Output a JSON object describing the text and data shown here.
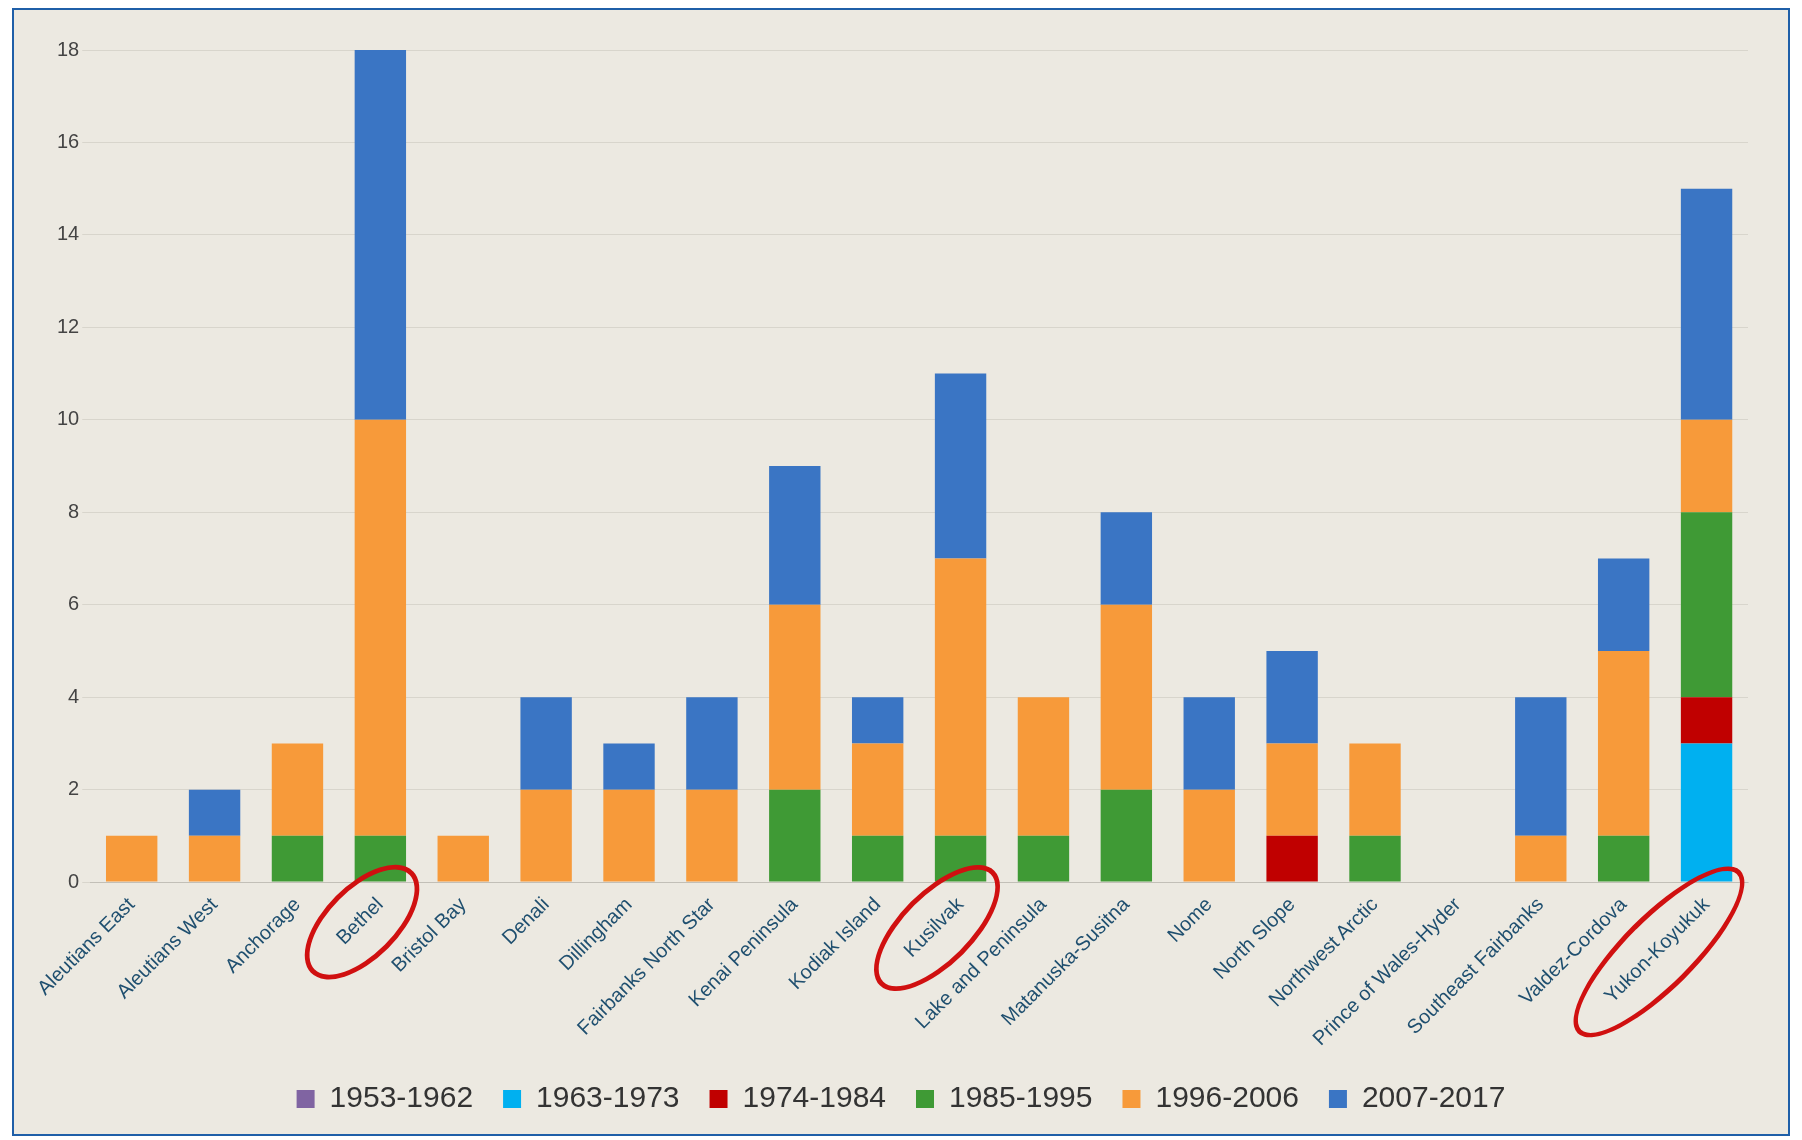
{
  "chart_data": {
    "type": "bar",
    "stacked": true,
    "categories": [
      "Aleutians East",
      "Aleutians West",
      "Anchorage",
      "Bethel",
      "Bristol Bay",
      "Denali",
      "Dillingham",
      "Fairbanks North Star",
      "Kenai Peninsula",
      "Kodiak Island",
      "Kusilvak",
      "Lake and Peninsula",
      "Matanuska-Susitna",
      "Nome",
      "North Slope",
      "Northwest Arctic",
      "Prince of Wales-Hyder",
      "Southeast Fairbanks",
      "Valdez-Cordova",
      "Yukon-Koyukuk"
    ],
    "series": [
      {
        "name": "1953-1962",
        "color": "#8064a2",
        "values": [
          0,
          0,
          0,
          0,
          0,
          0,
          0,
          0,
          0,
          0,
          0,
          0,
          0,
          0,
          0,
          0,
          0,
          0,
          0,
          0
        ]
      },
      {
        "name": "1963-1973",
        "color": "#00b0f0",
        "values": [
          0,
          0,
          0,
          0,
          0,
          0,
          0,
          0,
          0,
          0,
          0,
          0,
          0,
          0,
          0,
          0,
          0,
          0,
          0,
          3
        ]
      },
      {
        "name": "1974-1984",
        "color": "#c00000",
        "values": [
          0,
          0,
          0,
          0,
          0,
          0,
          0,
          0,
          0,
          0,
          0,
          0,
          0,
          0,
          1,
          0,
          0,
          0,
          0,
          1
        ]
      },
      {
        "name": "1985-1995",
        "color": "#3f9a35",
        "values": [
          0,
          0,
          1,
          1,
          0,
          0,
          0,
          0,
          2,
          1,
          1,
          1,
          2,
          0,
          0,
          1,
          0,
          0,
          1,
          4
        ]
      },
      {
        "name": "1996-2006",
        "color": "#f79a3a",
        "values": [
          1,
          1,
          2,
          9,
          1,
          2,
          2,
          2,
          4,
          2,
          6,
          3,
          4,
          2,
          2,
          2,
          0,
          1,
          4,
          2
        ]
      },
      {
        "name": "2007-2017",
        "color": "#3a75c4",
        "values": [
          0,
          1,
          0,
          8,
          0,
          2,
          1,
          2,
          3,
          1,
          4,
          0,
          2,
          2,
          2,
          0,
          0,
          3,
          2,
          5
        ]
      }
    ],
    "ylim": [
      0,
      18
    ],
    "yticks": [
      0,
      2,
      4,
      6,
      8,
      10,
      12,
      14,
      16,
      18
    ],
    "grid": "y",
    "legend": "bottom"
  }
}
